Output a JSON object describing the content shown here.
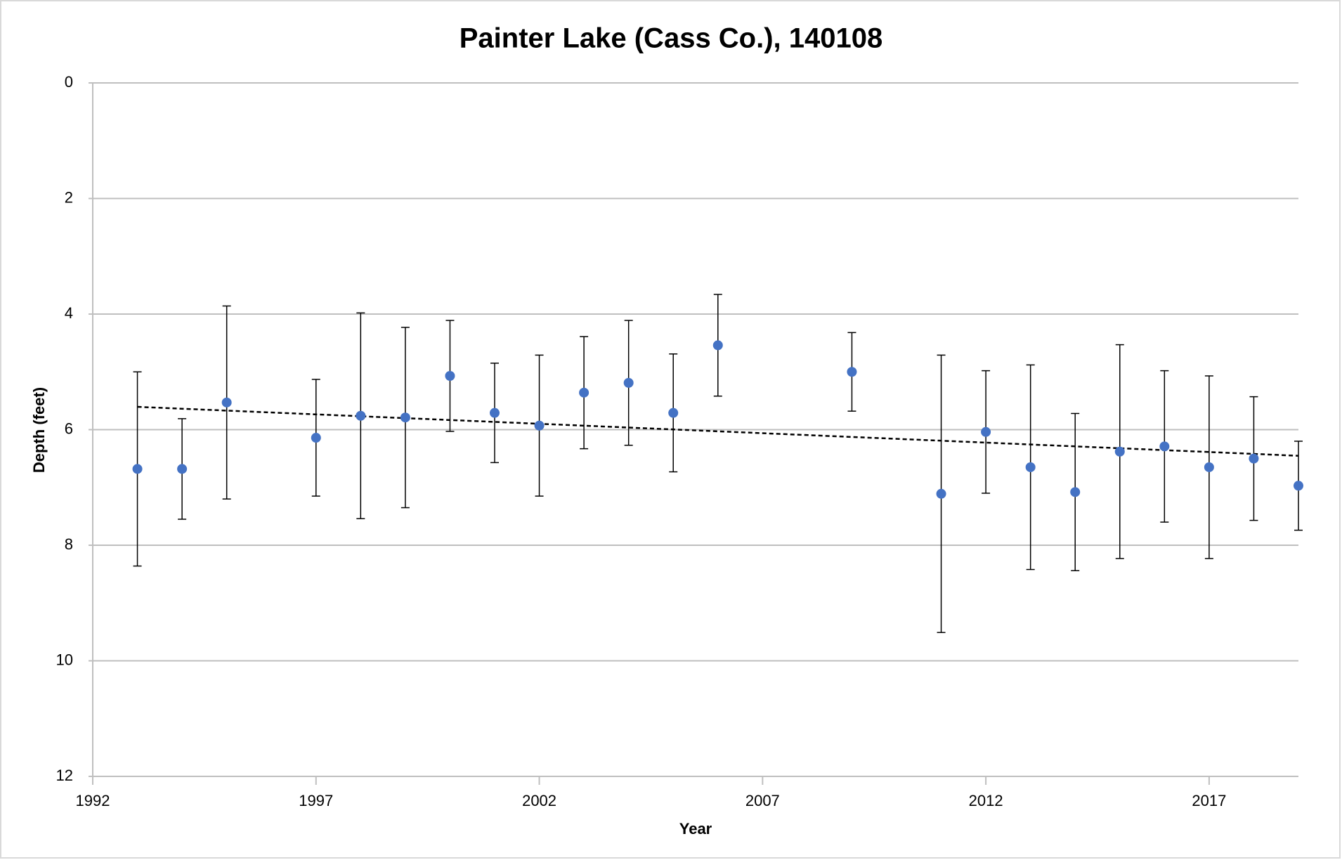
{
  "chart_data": {
    "type": "scatter",
    "title": "Painter Lake (Cass Co.), 140108",
    "x_label": "Year",
    "y_label": "Depth (feet)",
    "xlim": [
      1992,
      2019
    ],
    "xticks": [
      1992,
      1997,
      2002,
      2007,
      2012,
      2017
    ],
    "ylim": [
      0,
      12
    ],
    "yticks": [
      0,
      2,
      4,
      6,
      8,
      10,
      12
    ],
    "y_inverted": true,
    "grid": true,
    "trendline": true,
    "series": [
      {
        "color": "#4472c4",
        "x": [
          1993,
          1994,
          1995,
          1997,
          1998,
          1999,
          2000,
          2001,
          2002,
          2003,
          2004,
          2005,
          2006,
          2009,
          2011,
          2012,
          2013,
          2014,
          2015,
          2016,
          2017,
          2018,
          2019
        ],
        "values": [
          6.68,
          6.68,
          5.53,
          6.14,
          5.76,
          5.79,
          5.07,
          5.71,
          5.93,
          5.36,
          5.19,
          5.71,
          4.54,
          5.0,
          7.11,
          6.04,
          6.65,
          7.08,
          6.38,
          6.29,
          6.65,
          6.5,
          6.97
        ],
        "errors": [
          1.68,
          0.87,
          1.67,
          1.01,
          1.78,
          1.56,
          0.96,
          0.86,
          1.22,
          0.97,
          1.08,
          1.02,
          0.88,
          0.68,
          2.4,
          1.06,
          1.77,
          1.36,
          1.85,
          1.31,
          1.58,
          1.07,
          0.77
        ]
      }
    ]
  }
}
